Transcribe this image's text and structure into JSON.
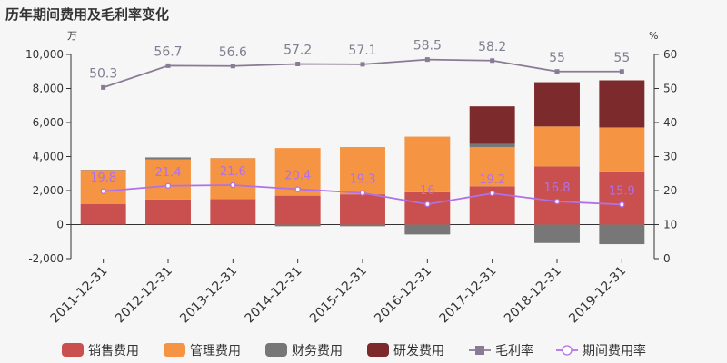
{
  "chart_data": {
    "type": "bar",
    "title": "历年期间费用及毛利率变化",
    "left_axis_unit": "万",
    "right_axis_unit": "%",
    "categories": [
      "2011-12-31",
      "2012-12-31",
      "2013-12-31",
      "2014-12-31",
      "2015-12-31",
      "2016-12-31",
      "2017-12-31",
      "2018-12-31",
      "2019-12-31"
    ],
    "ylim": [
      -2000,
      10000
    ],
    "yticks": [
      -2000,
      0,
      2000,
      4000,
      6000,
      8000,
      10000
    ],
    "ytick_labels": [
      "-2,000",
      "0",
      "2,000",
      "4,000",
      "6,000",
      "8,000",
      "10,000"
    ],
    "y2lim": [
      0,
      60
    ],
    "y2ticks": [
      0,
      10,
      20,
      30,
      40,
      50,
      60
    ],
    "y2tick_labels": [
      "0",
      "10",
      "20",
      "30",
      "40",
      "50",
      "60"
    ],
    "grid": false,
    "legend_position": "bottom",
    "series": [
      {
        "name": "销售费用",
        "kind": "bar",
        "axis": "left",
        "color": "#c9504f",
        "values": [
          1200,
          1480,
          1500,
          1700,
          1780,
          1900,
          2250,
          3420,
          3130
        ]
      },
      {
        "name": "管理费用",
        "kind": "bar",
        "axis": "left",
        "color": "#f59443",
        "values": [
          2000,
          2350,
          2400,
          2800,
          2780,
          3270,
          2300,
          2350,
          2580
        ]
      },
      {
        "name": "财务费用",
        "kind": "bar",
        "axis": "left",
        "color": "#777777",
        "values": [
          20,
          120,
          10,
          -100,
          -100,
          -580,
          200,
          -1080,
          -1150
        ]
      },
      {
        "name": "研发费用",
        "kind": "bar",
        "axis": "left",
        "color": "#7c2a2b",
        "values": [
          0,
          0,
          0,
          0,
          0,
          0,
          2200,
          2600,
          2770
        ]
      },
      {
        "name": "毛利率",
        "kind": "line",
        "axis": "right",
        "color": "#8a7b95",
        "marker": "square",
        "values": [
          50.3,
          56.7,
          56.6,
          57.2,
          57.1,
          58.5,
          58.2,
          55,
          55
        ],
        "labels": [
          "50.3",
          "56.7",
          "56.6",
          "57.2",
          "57.1",
          "58.5",
          "58.2",
          "55",
          "55"
        ]
      },
      {
        "name": "期间费用率",
        "kind": "line",
        "axis": "right",
        "color": "#b070e8",
        "marker": "circle",
        "values": [
          19.8,
          21.4,
          21.6,
          20.4,
          19.3,
          16,
          19.2,
          16.8,
          15.9
        ],
        "labels": [
          "19.8",
          "21.4",
          "21.6",
          "20.4",
          "19.3",
          "16",
          "19.2",
          "16.8",
          "15.9"
        ]
      }
    ]
  }
}
